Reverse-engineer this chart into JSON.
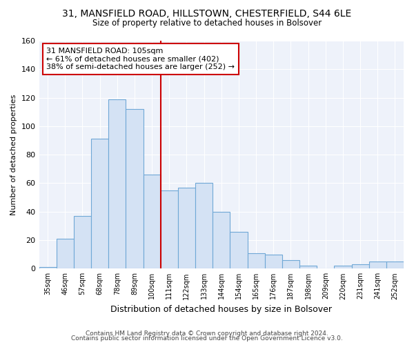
{
  "title_line1": "31, MANSFIELD ROAD, HILLSTOWN, CHESTERFIELD, S44 6LE",
  "title_line2": "Size of property relative to detached houses in Bolsover",
  "xlabel": "Distribution of detached houses by size in Bolsover",
  "ylabel": "Number of detached properties",
  "footer_line1": "Contains HM Land Registry data © Crown copyright and database right 2024.",
  "footer_line2": "Contains public sector information licensed under the Open Government Licence v3.0.",
  "annotation_line1": "31 MANSFIELD ROAD: 105sqm",
  "annotation_line2": "← 61% of detached houses are smaller (402)",
  "annotation_line3": "38% of semi-detached houses are larger (252) →",
  "bar_labels": [
    "35sqm",
    "46sqm",
    "57sqm",
    "68sqm",
    "78sqm",
    "89sqm",
    "100sqm",
    "111sqm",
    "122sqm",
    "133sqm",
    "144sqm",
    "154sqm",
    "165sqm",
    "176sqm",
    "187sqm",
    "198sqm",
    "209sqm",
    "220sqm",
    "231sqm",
    "241sqm",
    "252sqm"
  ],
  "bar_values": [
    1,
    21,
    37,
    91,
    119,
    112,
    66,
    55,
    57,
    60,
    40,
    26,
    11,
    10,
    6,
    2,
    0,
    2,
    3,
    5,
    5
  ],
  "bar_color": "#d4e2f4",
  "bar_edge_color": "#6fa8d6",
  "vline_color": "#cc0000",
  "vline_index": 6,
  "ylim": [
    0,
    160
  ],
  "yticks": [
    0,
    20,
    40,
    60,
    80,
    100,
    120,
    140,
    160
  ],
  "background_color": "#ffffff",
  "plot_bg_color": "#eef2fa",
  "grid_color": "#ffffff",
  "annotation_box_color": "white",
  "annotation_box_edge": "#cc0000"
}
